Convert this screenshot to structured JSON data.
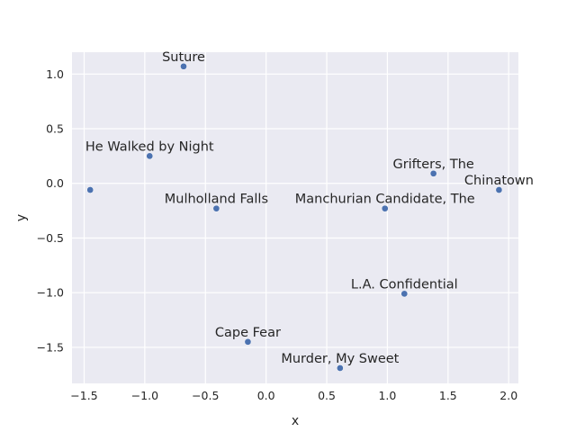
{
  "chart_data": {
    "type": "scatter",
    "title": "",
    "xlabel": "x",
    "ylabel": "y",
    "xlim": [
      -1.6,
      2.08
    ],
    "ylim": [
      -1.83,
      1.2
    ],
    "xticks": [
      -1.5,
      -1.0,
      -0.5,
      0.0,
      0.5,
      1.0,
      1.5,
      2.0
    ],
    "xtick_labels": [
      "−1.5",
      "−1.0",
      "−0.5",
      "0.0",
      "0.5",
      "1.0",
      "1.5",
      "2.0"
    ],
    "yticks": [
      1.0,
      0.5,
      0.0,
      -0.5,
      -1.0,
      -1.5
    ],
    "ytick_labels": [
      "1.0",
      "0.5",
      "0.0",
      "−0.5",
      "−1.0",
      "−1.5"
    ],
    "grid": true,
    "style": {
      "background": "#eaeaf2",
      "grid_color": "#ffffff",
      "point_color": "#4c72b0"
    },
    "points": [
      {
        "label": "Suture",
        "x": -0.68,
        "y": 1.07
      },
      {
        "label": "He Walked by Night",
        "x": -0.96,
        "y": 0.25
      },
      {
        "label": "",
        "x": -1.45,
        "y": -0.06
      },
      {
        "label": "Mulholland Falls",
        "x": -0.41,
        "y": -0.23
      },
      {
        "label": "Grifters, The",
        "x": 1.38,
        "y": 0.09
      },
      {
        "label": "Chinatown",
        "x": 1.92,
        "y": -0.06
      },
      {
        "label": "Manchurian Candidate, The",
        "x": 0.98,
        "y": -0.23
      },
      {
        "label": "L.A. Confidential",
        "x": 1.14,
        "y": -1.01
      },
      {
        "label": "Cape Fear",
        "x": -0.15,
        "y": -1.45
      },
      {
        "label": "Murder, My Sweet",
        "x": 0.61,
        "y": -1.69
      }
    ]
  }
}
